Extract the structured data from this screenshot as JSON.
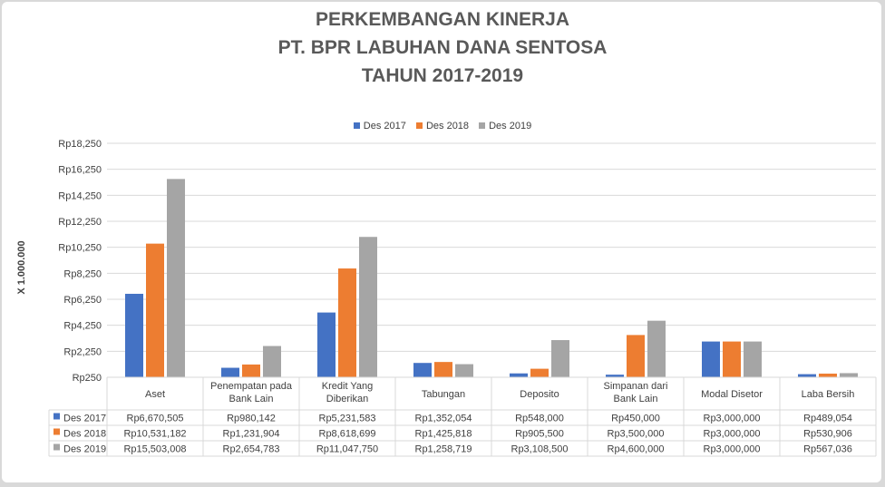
{
  "chart_data": {
    "type": "bar",
    "title_lines": [
      "PERKEMBANGAN KINERJA",
      "PT. BPR LABUHAN DANA SENTOSA",
      "TAHUN 2017-2019"
    ],
    "ylabel": "X 1.000.000",
    "y_ticks": [
      250,
      2250,
      4250,
      6250,
      8250,
      10250,
      12250,
      14250,
      16250,
      18250
    ],
    "y_tick_labels": [
      "Rp250",
      "Rp2,250",
      "Rp4,250",
      "Rp6,250",
      "Rp8,250",
      "Rp10,250",
      "Rp12,250",
      "Rp14,250",
      "Rp16,250",
      "Rp18,250"
    ],
    "ylim": [
      250,
      18250
    ],
    "grid": true,
    "legend_position": "top",
    "categories": [
      [
        "Aset"
      ],
      [
        "Penempatan pada",
        "Bank Lain"
      ],
      [
        "Kredit Yang",
        "Diberikan"
      ],
      [
        "Tabungan"
      ],
      [
        "Deposito"
      ],
      [
        "Simpanan dari",
        "Bank Lain"
      ],
      [
        "Modal Disetor"
      ],
      [
        "Laba Bersih"
      ]
    ],
    "series": [
      {
        "name": "Des 2017",
        "color": "#4472c4",
        "values": [
          6670.505,
          980.142,
          5231.583,
          1352.054,
          548.0,
          450.0,
          3000.0,
          489.054
        ],
        "labels": [
          "Rp6,670,505",
          "Rp980,142",
          "Rp5,231,583",
          "Rp1,352,054",
          "Rp548,000",
          "Rp450,000",
          "Rp3,000,000",
          "Rp489,054"
        ]
      },
      {
        "name": "Des 2018",
        "color": "#ed7d31",
        "values": [
          10531.182,
          1231.904,
          8618.699,
          1425.818,
          905.5,
          3500.0,
          3000.0,
          530.906
        ],
        "labels": [
          "Rp10,531,182",
          "Rp1,231,904",
          "Rp8,618,699",
          "Rp1,425,818",
          "Rp905,500",
          "Rp3,500,000",
          "Rp3,000,000",
          "Rp530,906"
        ]
      },
      {
        "name": "Des 2019",
        "color": "#a5a5a5",
        "values": [
          15503.008,
          2654.783,
          11047.75,
          1258.719,
          3108.5,
          4600.0,
          3000.0,
          567.036
        ],
        "labels": [
          "Rp15,503,008",
          "Rp2,654,783",
          "Rp11,047,750",
          "Rp1,258,719",
          "Rp3,108,500",
          "Rp4,600,000",
          "Rp3,000,000",
          "Rp567,036"
        ]
      }
    ]
  }
}
